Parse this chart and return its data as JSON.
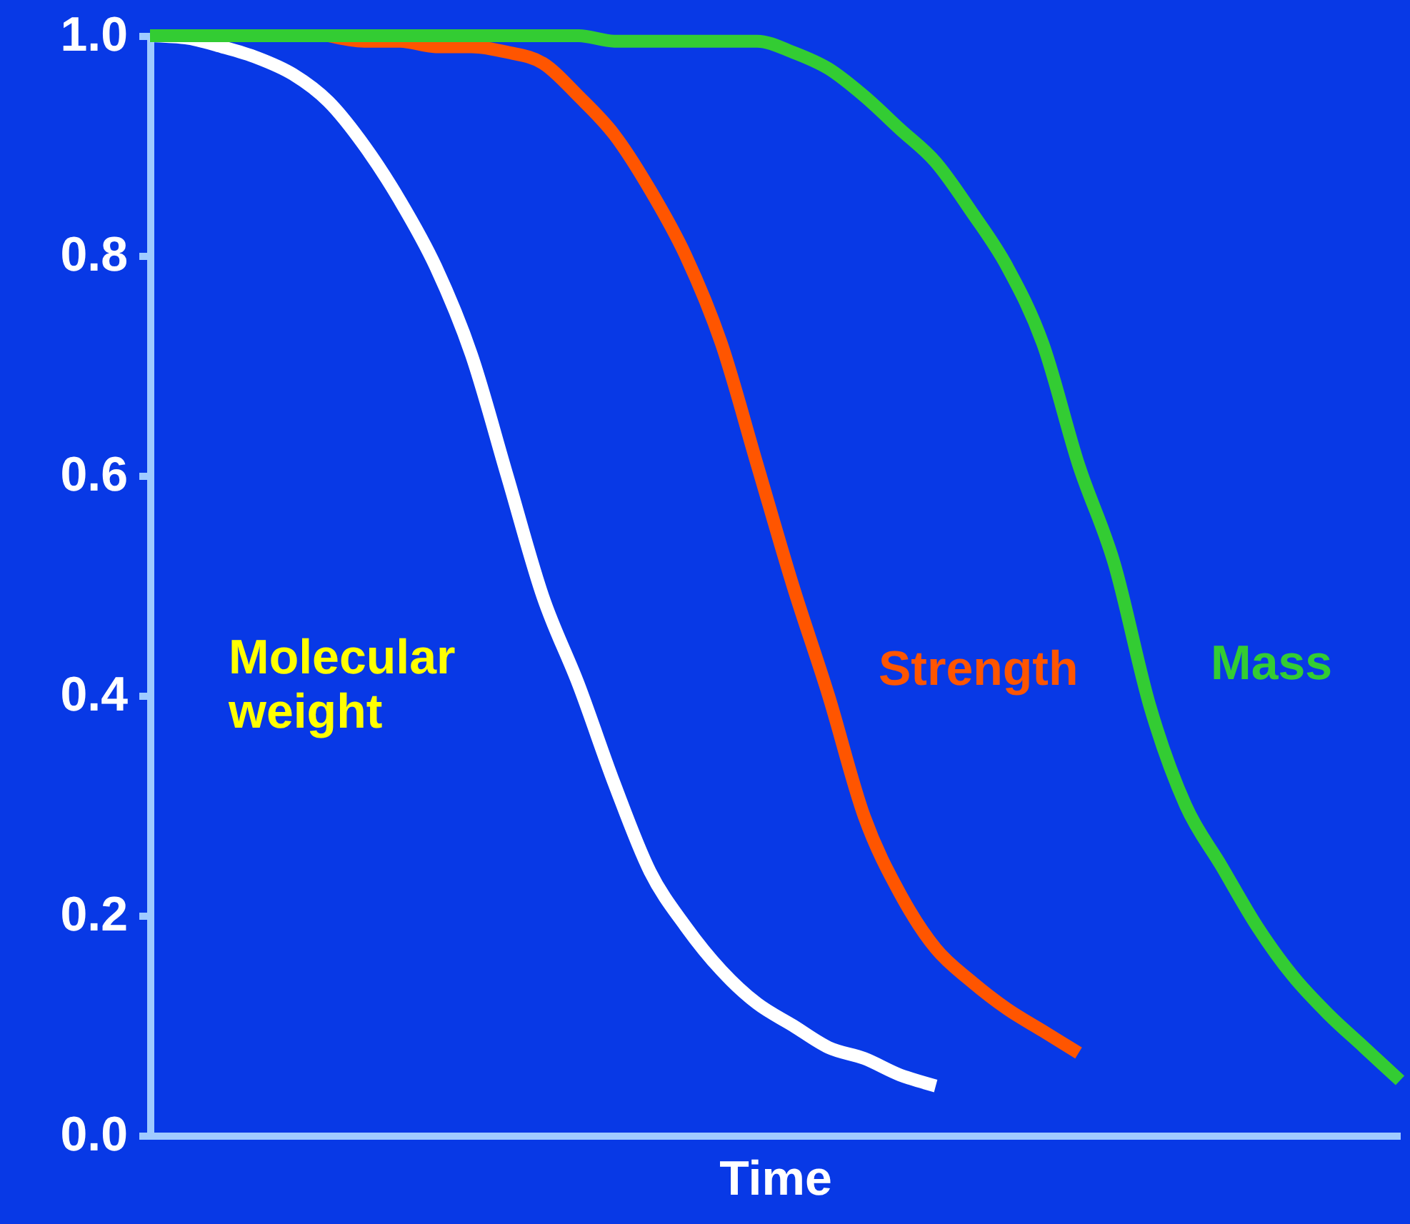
{
  "chart_data": {
    "type": "line",
    "xlabel": "Time",
    "categories": [
      null,
      null,
      null,
      null,
      null,
      null,
      null,
      null,
      null,
      null,
      null,
      null,
      null,
      null,
      null,
      null,
      null,
      null,
      null,
      null,
      null,
      null,
      null,
      null,
      null,
      null,
      null,
      null,
      null,
      null,
      null,
      null,
      null,
      null,
      null,
      null
    ],
    "series": [
      {
        "name": "Molecular weight",
        "color": "#ffffff",
        "values": [
          1.0,
          0.998,
          0.99,
          0.98,
          0.965,
          0.94,
          0.9,
          0.85,
          0.79,
          0.71,
          0.6,
          0.49,
          0.41,
          0.32,
          0.24,
          0.19,
          0.15,
          0.12,
          0.1,
          0.08,
          0.07,
          0.055,
          0.045,
          null,
          null,
          null,
          null,
          null,
          null,
          null,
          null,
          null,
          null,
          null,
          null,
          null
        ]
      },
      {
        "name": "Strength",
        "color": "#ff5500",
        "values": [
          null,
          null,
          null,
          null,
          null,
          1.0,
          0.995,
          0.995,
          0.99,
          0.99,
          0.985,
          0.975,
          0.945,
          0.91,
          0.86,
          0.8,
          0.72,
          0.61,
          0.5,
          0.4,
          0.29,
          0.22,
          0.17,
          0.14,
          0.115,
          0.095,
          0.075,
          null,
          null,
          null,
          null,
          null,
          null,
          null,
          null,
          null
        ]
      },
      {
        "name": "Mass",
        "color": "#33cc33",
        "values": [
          1.0,
          1.0,
          1.0,
          1.0,
          1.0,
          1.0,
          1.0,
          1.0,
          1.0,
          1.0,
          1.0,
          1.0,
          1.0,
          0.995,
          0.995,
          0.995,
          0.995,
          0.995,
          0.985,
          0.97,
          0.945,
          0.915,
          0.885,
          0.84,
          0.79,
          0.72,
          0.61,
          0.52,
          0.39,
          0.3,
          0.245,
          0.19,
          0.145,
          0.11,
          0.08,
          0.05
        ]
      }
    ],
    "ylim": [
      0,
      1.0
    ],
    "yticks": [
      {
        "value": 0,
        "label": "0.0"
      },
      0.2,
      0.4,
      0.6,
      0.8,
      {
        "value": 1.0,
        "label": "1.0"
      }
    ],
    "tick_labels": "y",
    "grid": false,
    "marker": "none",
    "line_style": "solid"
  }
}
